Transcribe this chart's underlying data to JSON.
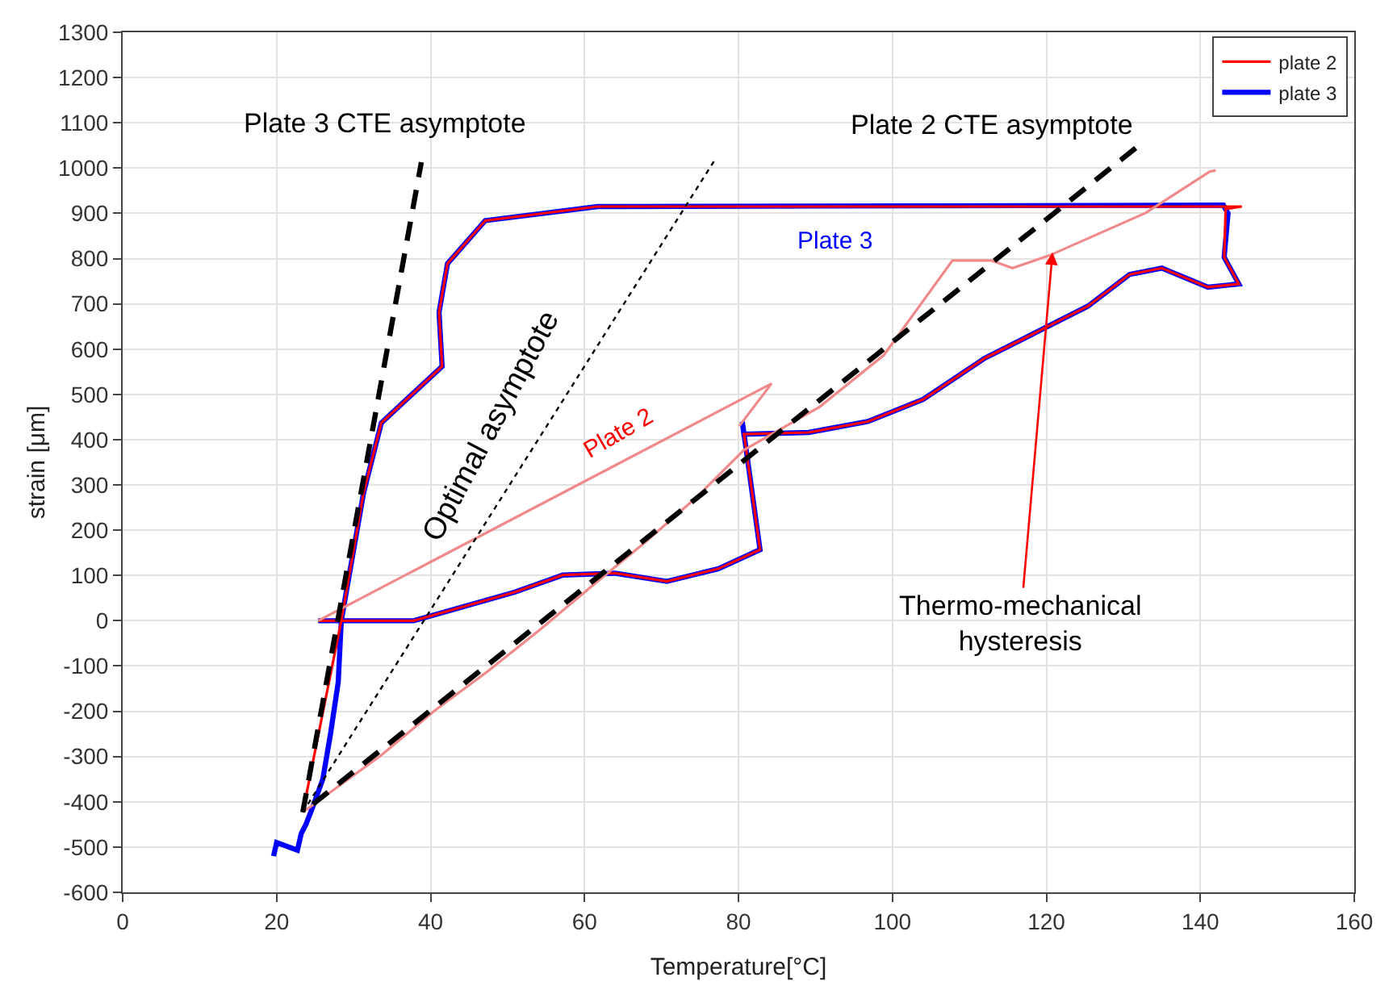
{
  "chart_data": {
    "type": "line",
    "xlabel": "Temperature[°C]",
    "ylabel": "strain [μm]",
    "xlim": [
      0,
      160
    ],
    "xticks": [
      0,
      20,
      40,
      60,
      80,
      100,
      120,
      140,
      160
    ],
    "ylim": [
      -600,
      1300
    ],
    "yticks": [
      -600,
      -500,
      -400,
      -300,
      -200,
      -100,
      0,
      100,
      200,
      300,
      400,
      500,
      600,
      700,
      800,
      900,
      1000,
      1100,
      1200,
      1300
    ],
    "grid": true,
    "legend": "top right",
    "marker": "none",
    "series": [
      {
        "name": "plate 2",
        "color": "#ff0000",
        "line_style": "solid",
        "x": [
          23.4,
          28.4,
          31.3,
          33.6,
          41.5,
          41.1,
          42.2,
          47.1,
          61.7,
          145.4,
          143.3,
          143.1,
          145.0,
          141.0,
          135.0,
          130.8,
          125.4,
          119.7,
          112.0,
          104.0,
          96.8,
          89.1,
          80.7,
          80.7,
          82.8,
          77.4,
          70.7,
          64.0,
          57.2,
          50.9,
          37.8,
          25.4,
          28.4
        ],
        "values": [
          -423,
          0,
          283,
          437,
          562,
          681,
          789,
          884,
          915,
          915,
          910,
          803,
          744,
          737,
          779,
          765,
          695,
          646,
          580,
          489,
          440,
          416,
          412,
          415,
          157,
          115,
          87,
          105,
          101,
          63,
          0,
          0,
          0
        ]
      },
      {
        "name": "plate 3",
        "color": "#0000ff",
        "line_style": "solid",
        "x": [
          19.6,
          20.0,
          22.7,
          23.2,
          23.8,
          24.5,
          26.0,
          27.0,
          28.0,
          28.4,
          31.3,
          33.6,
          41.5,
          41.1,
          42.2,
          47.1,
          61.7,
          143.0,
          143.6,
          143.1,
          145.0,
          141.0,
          135.0,
          130.8,
          125.4,
          119.7,
          112.0,
          104.0,
          96.8,
          89.1,
          80.7,
          80.5,
          82.8,
          77.4,
          70.7,
          64.0,
          57.2,
          50.9,
          37.8,
          28.0,
          25.4
        ],
        "values": [
          -520,
          -490,
          -507,
          -470,
          -450,
          -420,
          -350,
          -250,
          -136,
          0,
          283,
          437,
          562,
          681,
          789,
          884,
          915,
          918,
          900,
          803,
          744,
          737,
          779,
          765,
          695,
          646,
          580,
          489,
          440,
          416,
          412,
          440,
          157,
          115,
          87,
          105,
          101,
          63,
          0,
          0,
          0
        ]
      },
      {
        "color": "#f08a8a",
        "line_style": "solid",
        "x": [
          23.4,
          33.6,
          40.5,
          47.4,
          54.4,
          60.7,
          68.2,
          74.5,
          80.7,
          90.5,
          98.9,
          107.8,
          112.8,
          115.6,
          120.4,
          132.9,
          141.2,
          142.0,
          null,
          25.4,
          84.3,
          80.1
        ],
        "values": [
          -423,
          -297,
          -199,
          -112,
          -17,
          73,
          178,
          272,
          377,
          472,
          587,
          796,
          796,
          779,
          807,
          901,
          992,
          995,
          null,
          0,
          524,
          430
        ]
      },
      {
        "color": "#000000",
        "line_style": "dashed",
        "x": [
          23.4,
          38.8
        ],
        "values": [
          -423,
          1013
        ]
      },
      {
        "color": "#000000",
        "line_style": "dashed",
        "x": [
          131.6,
          23.4
        ],
        "values": [
          1044,
          -423
        ]
      },
      {
        "color": "#000000",
        "line_style": "dotted",
        "x": [
          23.4,
          77.0
        ],
        "values": [
          -423,
          1020
        ]
      }
    ],
    "annotations": [
      "Plate 3 CTE asymptote",
      "Plate 2 CTE asymptote",
      "Optimal asymptote",
      "Plate 2",
      "Plate 3",
      {
        "text": "Thermo-mechanical\nhysteresis",
        "x": 120.8,
        "y": 814
      }
    ]
  }
}
